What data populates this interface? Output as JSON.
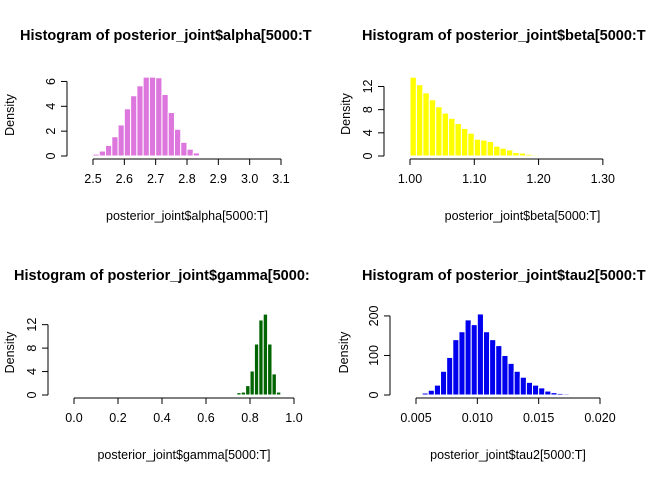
{
  "colors": {
    "panel1": "#dd77dd",
    "panel2": "#ffff00",
    "panel3": "#006400",
    "panel4": "#0000ee",
    "axis": "#000000"
  },
  "chart_data": [
    {
      "type": "bar",
      "title": "Histogram of posterior_joint$alpha[5000:T",
      "xlabel": "posterior_joint$alpha[5000:T]",
      "ylabel": "Density",
      "xlim": [
        2.5,
        3.1
      ],
      "ylim": [
        0,
        6.6
      ],
      "xticks": [
        "2.5",
        "2.6",
        "2.7",
        "2.8",
        "2.9",
        "3.0",
        "3.1"
      ],
      "xtick_values": [
        2.5,
        2.6,
        2.7,
        2.8,
        2.9,
        3.0,
        3.1
      ],
      "yticks": [
        "0",
        "2",
        "4",
        "6"
      ],
      "ytick_values": [
        0,
        2,
        4,
        6
      ],
      "bin_width": 0.02,
      "bin_starts": [
        2.48,
        2.5,
        2.52,
        2.54,
        2.56,
        2.58,
        2.6,
        2.62,
        2.64,
        2.66,
        2.68,
        2.7,
        2.72,
        2.74,
        2.76,
        2.78,
        2.8,
        2.82
      ],
      "values": [
        0.05,
        0.15,
        0.4,
        0.85,
        1.55,
        2.5,
        3.8,
        4.85,
        5.65,
        6.35,
        6.35,
        6.3,
        4.95,
        3.5,
        2.15,
        1.1,
        0.55,
        0.25
      ]
    },
    {
      "type": "bar",
      "title": "Histogram of posterior_joint$beta[5000:T",
      "xlabel": "posterior_joint$beta[5000:T]",
      "ylabel": "Density",
      "xlim": [
        1.0,
        1.35
      ],
      "ylim": [
        0,
        14.5
      ],
      "xticks": [
        "1.00",
        "1.10",
        "1.20",
        "1.30"
      ],
      "xtick_values": [
        1.0,
        1.1,
        1.2,
        1.3
      ],
      "yticks": [
        "0",
        "4",
        "8",
        "12"
      ],
      "ytick_values": [
        0,
        4,
        8,
        12
      ],
      "bin_width": 0.01,
      "bin_starts": [
        1.0,
        1.01,
        1.02,
        1.03,
        1.04,
        1.05,
        1.06,
        1.07,
        1.08,
        1.09,
        1.1,
        1.11,
        1.12,
        1.13,
        1.14,
        1.15,
        1.16,
        1.17,
        1.18,
        1.19,
        1.2,
        1.21
      ],
      "values": [
        13.6,
        12.3,
        10.9,
        9.7,
        8.5,
        7.4,
        6.5,
        5.6,
        4.75,
        3.95,
        2.9,
        2.75,
        2.5,
        1.7,
        1.35,
        1.05,
        0.6,
        0.5,
        0.3,
        0.2,
        0.1,
        0.05
      ]
    },
    {
      "type": "bar",
      "title": "Histogram of posterior_joint$gamma[5000:",
      "xlabel": "posterior_joint$gamma[5000:T]",
      "ylabel": "Density",
      "xlim": [
        0.0,
        1.0
      ],
      "ylim": [
        0,
        14.5
      ],
      "xticks": [
        "0.0",
        "0.2",
        "0.4",
        "0.6",
        "0.8",
        "1.0"
      ],
      "xtick_values": [
        0.0,
        0.2,
        0.4,
        0.6,
        0.8,
        1.0
      ],
      "yticks": [
        "0",
        "4",
        "8",
        "12"
      ],
      "ytick_values": [
        0,
        4,
        8,
        12
      ],
      "bin_width": 0.02,
      "bin_starts": [
        0.74,
        0.76,
        0.78,
        0.8,
        0.82,
        0.84,
        0.86,
        0.88,
        0.9,
        0.92
      ],
      "values": [
        0.4,
        0.5,
        1.6,
        4.1,
        8.7,
        12.8,
        13.8,
        8.7,
        3.6,
        0.5
      ]
    },
    {
      "type": "bar",
      "title": "Histogram of posterior_joint$tau2[5000:T",
      "xlabel": "posterior_joint$tau2[5000:T]",
      "ylabel": "Density",
      "xlim": [
        0.005,
        0.02
      ],
      "ylim": [
        0,
        215
      ],
      "xticks": [
        "0.005",
        "0.010",
        "0.015",
        "0.020"
      ],
      "xtick_values": [
        0.005,
        0.01,
        0.015,
        0.02
      ],
      "yticks": [
        "0",
        "100",
        "200"
      ],
      "ytick_values": [
        0,
        100,
        200
      ],
      "bin_width": 0.0005,
      "bin_starts": [
        0.0055,
        0.006,
        0.0065,
        0.007,
        0.0075,
        0.008,
        0.0085,
        0.009,
        0.0095,
        0.01,
        0.0105,
        0.011,
        0.0115,
        0.012,
        0.0125,
        0.013,
        0.0135,
        0.014,
        0.0145,
        0.015,
        0.0155,
        0.016,
        0.0165,
        0.017,
        0.0175
      ],
      "values": [
        5,
        12,
        25,
        60,
        95,
        140,
        160,
        190,
        178,
        205,
        160,
        140,
        125,
        100,
        80,
        60,
        45,
        32,
        25,
        18,
        10,
        6,
        4,
        3,
        2
      ]
    }
  ]
}
